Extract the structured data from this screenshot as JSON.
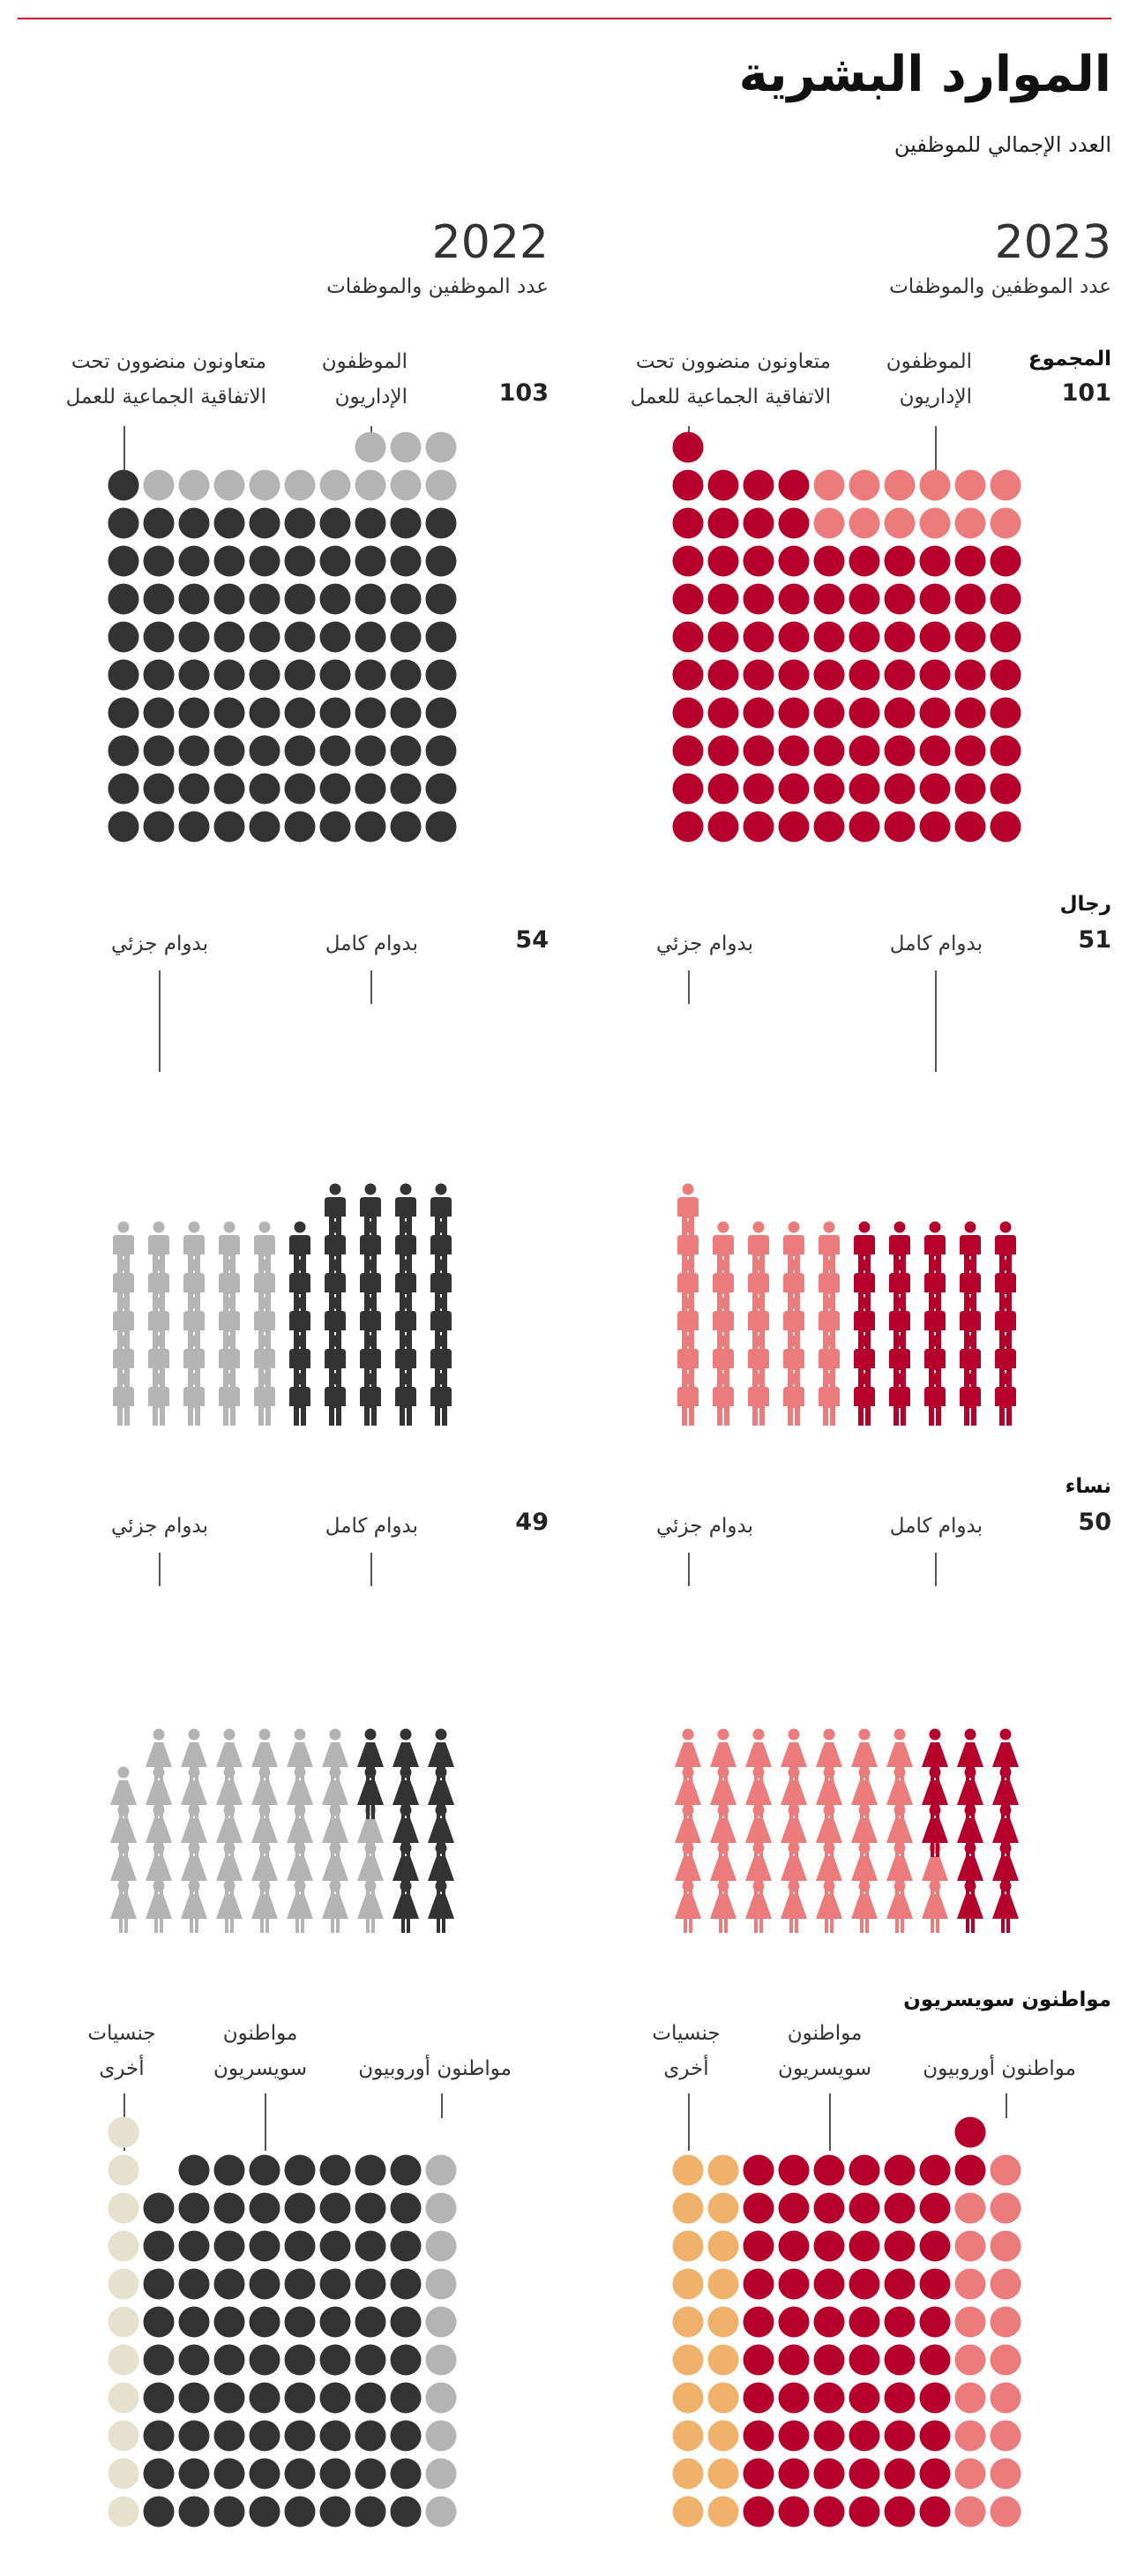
{
  "header": {
    "title": "الموارد البشرية",
    "subtitle": "العدد الإجمالي للموظفين"
  },
  "years": {
    "y2023": {
      "year": "2023",
      "sub": "عدد الموظفين والموظفات"
    },
    "y2022": {
      "year": "2022",
      "sub": "عدد الموظفين والموظفات"
    }
  },
  "colors": {
    "red_dark": "#b5002b",
    "red_light": "#ec7b7b",
    "grey_dark": "#333333",
    "grey_light": "#b4b4b4",
    "orange": "#f0b26b",
    "beige": "#e6e1cc",
    "accent_line": "#c8102e"
  },
  "sections": {
    "total": {
      "label": "المجموع",
      "y2023": {
        "count": "101",
        "cat_a": "الموظفون\nالإداريون",
        "cat_b": "متعاونون منضوون تحت\nالاتفاقية الجماعية للعمل"
      },
      "y2022": {
        "count": "103",
        "cat_a": "الموظفون\nالإداريون",
        "cat_b": "متعاونون منضوون تحت\nالاتفاقية الجماعية للعمل"
      }
    },
    "men": {
      "label": "رجال",
      "y2023": {
        "count": "51",
        "cat_a": "بدوام كامل",
        "cat_b": "بدوام جزئي"
      },
      "y2022": {
        "count": "54",
        "cat_a": "بدوام كامل",
        "cat_b": "بدوام جزئي"
      }
    },
    "women": {
      "label": "نساء",
      "y2023": {
        "count": "50",
        "cat_a": "بدوام كامل",
        "cat_b": "بدوام جزئي"
      },
      "y2022": {
        "count": "49",
        "cat_a": "بدوام كامل",
        "cat_b": "بدوام جزئي"
      }
    },
    "nationality": {
      "label": "مواطنون سويسريون",
      "y2023": {
        "cat_eu": "مواطنون أوروبيون",
        "cat_swiss": "مواطنون\nسويسريون",
        "cat_other": "جنسيات\nأخرى"
      },
      "y2022": {
        "cat_eu": "مواطنون أوروبيون",
        "cat_swiss": "مواطنون\nسويسريون",
        "cat_other": "جنسيات\nأخرى"
      }
    }
  },
  "chart_data": [
    {
      "type": "table",
      "title": "المجموع 2023",
      "categories": [
        "الموظفون الإداريون",
        "متعاونون منضوون تحت الاتفاقية الجماعية للعمل"
      ],
      "values": [
        14,
        87
      ],
      "total": 101
    },
    {
      "type": "table",
      "title": "المجموع 2022",
      "categories": [
        "الموظفون الإداريون",
        "متعاونون منضوون تحت الاتفاقية الجماعية للعمل"
      ],
      "values": [
        13,
        90
      ],
      "total": 103
    },
    {
      "type": "table",
      "title": "رجال 2023",
      "categories": [
        "بدوام كامل",
        "بدوام جزئي"
      ],
      "values": [
        25,
        26
      ],
      "total": 51
    },
    {
      "type": "table",
      "title": "رجال 2022",
      "categories": [
        "بدوام كامل",
        "بدوام جزئي"
      ],
      "values": [
        29,
        25
      ],
      "total": 54
    },
    {
      "type": "table",
      "title": "نساء 2023",
      "categories": [
        "بدوام كامل",
        "بدوام جزئي"
      ],
      "values": [
        13,
        37
      ],
      "total": 50
    },
    {
      "type": "table",
      "title": "نساء 2022",
      "categories": [
        "بدوام كامل",
        "بدوام جزئي"
      ],
      "values": [
        12,
        37
      ],
      "total": 49
    },
    {
      "type": "table",
      "title": "مواطنون سويسريون 2023",
      "categories": [
        "مواطنون أوروبيون",
        "مواطنون سويسريون",
        "جنسيات أخرى"
      ],
      "values": [
        19,
        62,
        20
      ],
      "total": 101
    },
    {
      "type": "table",
      "title": "مواطنون سويسريون 2022",
      "categories": [
        "مواطنون أوروبيون",
        "مواطنون سويسريون",
        "جنسيات أخرى"
      ],
      "values": [
        10,
        79,
        14
      ],
      "total": 103
    }
  ]
}
